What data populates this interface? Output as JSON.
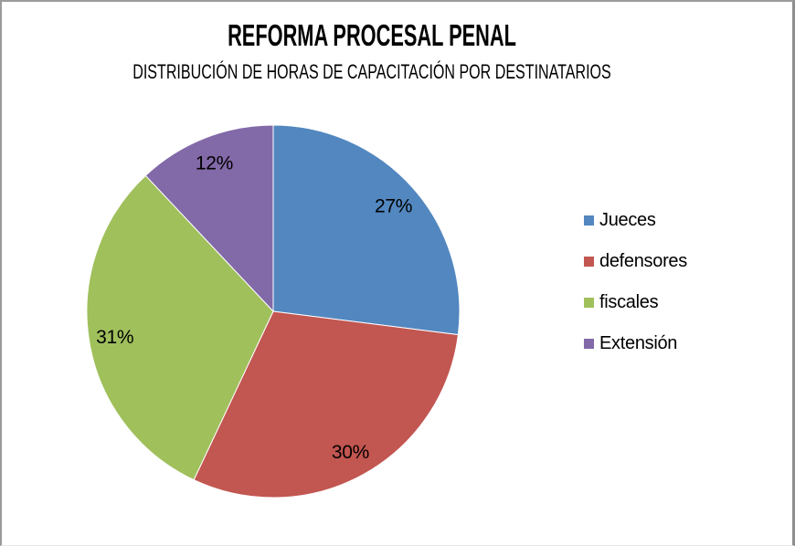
{
  "window": {
    "background": "#ffffff",
    "border_color": "#9b9b9b"
  },
  "chart_data": {
    "type": "pie",
    "title": "REFORMA PROCESAL PENAL",
    "subtitle": "DISTRIBUCIÓN DE HORAS DE CAPACITACIÓN POR DESTINATARIOS",
    "categories": [
      "Jueces",
      "defensores",
      "fiscales",
      "Extensión"
    ],
    "values": [
      27,
      30,
      31,
      12
    ],
    "data_labels": [
      "27%",
      "30%",
      "31%",
      "12%"
    ],
    "colors": [
      "#5287C0",
      "#C25651",
      "#A0C05C",
      "#8269A8"
    ],
    "units": "percent",
    "start_angle_deg": 0,
    "direction": "clockwise",
    "label_color": "#000000",
    "label_radius_fraction": 0.86,
    "slice_border_color": "#FFFFFF",
    "legend_position": "right",
    "legend_marker": "square"
  }
}
